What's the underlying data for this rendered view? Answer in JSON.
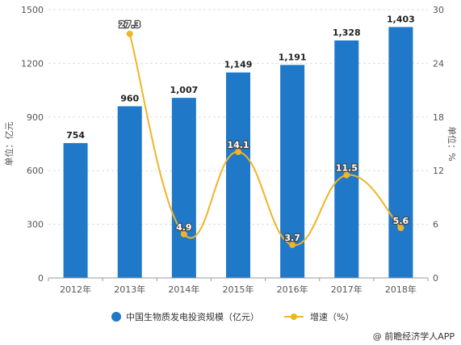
{
  "chart_data": {
    "type": "bar",
    "categories": [
      "2012年",
      "2013年",
      "2014年",
      "2015年",
      "2016年",
      "2017年",
      "2018年"
    ],
    "series": [
      {
        "name": "中国生物质发电投资规模（亿元）",
        "type": "bar",
        "axis": "left",
        "values": [
          754,
          960,
          1007,
          1149,
          1191,
          1328,
          1403
        ],
        "labels": [
          "754",
          "960",
          "1,007",
          "1,149",
          "1,191",
          "1,328",
          "1,403"
        ]
      },
      {
        "name": "增速（%）",
        "type": "line",
        "axis": "right",
        "values": [
          null,
          27.3,
          4.9,
          14.1,
          3.7,
          11.5,
          5.6
        ],
        "labels": [
          "",
          "27.3",
          "4.9",
          "14.1",
          "3.7",
          "11.5",
          "5.6"
        ]
      }
    ],
    "ylabel": "单位：亿元",
    "y2label": "单位：%",
    "ylim": [
      0,
      1500
    ],
    "y2lim": [
      0,
      30
    ],
    "yticks": [
      "0",
      "300",
      "600",
      "900",
      "1200",
      "1500"
    ],
    "y2ticks": [
      "0",
      "6",
      "12",
      "18",
      "24",
      "30"
    ],
    "grid": true,
    "legend": "bottom"
  },
  "colors": {
    "bar": "#1f78c8",
    "line": "#f0b429",
    "grid": "#dddddd"
  },
  "source": "@ 前瞻经济学人APP"
}
